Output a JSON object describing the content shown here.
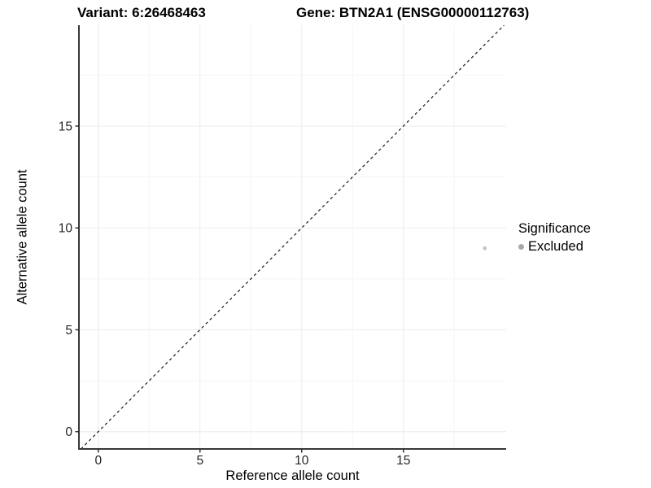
{
  "chart_data": {
    "type": "scatter",
    "title_left": "Variant: 6:26468463",
    "title_right": "Gene: BTN2A1 (ENSG00000112763)",
    "xlabel": "Reference allele count",
    "ylabel": "Alternative allele count",
    "xlim": [
      -0.95,
      20.05
    ],
    "ylim": [
      -0.85,
      19.95
    ],
    "xticks": [
      0,
      5,
      10,
      15
    ],
    "yticks": [
      0,
      5,
      10,
      15
    ],
    "xminor": [
      2.5,
      7.5,
      12.5,
      17.5
    ],
    "yminor": [
      2.5,
      7.5,
      12.5,
      17.5
    ],
    "grid": "major+minor",
    "identity_line": {
      "type": "abline",
      "slope": 1,
      "intercept": 0,
      "style": "dashed",
      "color": "#1a1a1a"
    },
    "series": [
      {
        "name": "Excluded",
        "color": "#c4c4c4",
        "marker": "circle",
        "size": 2.3,
        "points": [
          {
            "x": 19,
            "y": 9
          }
        ]
      }
    ],
    "legend": {
      "title": "Significance",
      "position": "right",
      "entries": [
        {
          "label": "Excluded",
          "color": "#a8a8a8",
          "marker": "circle"
        }
      ]
    },
    "colors": {
      "background": "#ffffff",
      "grid_major": "#ececec",
      "grid_minor": "#f5f5f5",
      "axis_line": "#383838",
      "tick": "#333333",
      "tick_label": "#262626"
    }
  }
}
